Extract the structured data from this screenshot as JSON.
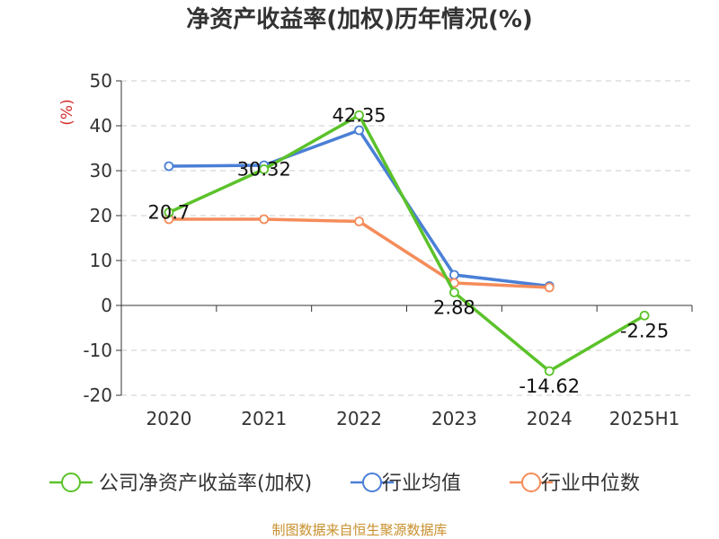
{
  "chart_data": {
    "type": "line",
    "title": "净资产收益率(加权)历年情况(%)",
    "ylabel": "(%)",
    "categories": [
      "2020",
      "2021",
      "2022",
      "2023",
      "2024",
      "2025H1"
    ],
    "ylim": [
      -20,
      50
    ],
    "yticks": [
      50,
      40,
      30,
      20,
      10,
      0,
      -10,
      -20
    ],
    "grid": true,
    "legend_position": "bottom",
    "series": [
      {
        "name": "公司净资产收益率(加权)",
        "color": "#5bc22a",
        "values": [
          20.7,
          30.32,
          42.35,
          2.88,
          -14.62,
          -2.25
        ],
        "labels": [
          "20.7",
          "30.32",
          "42.35",
          "2.88",
          "-14.62",
          "-2.25"
        ]
      },
      {
        "name": "行业均值",
        "color": "#4a7fd6",
        "values": [
          31.0,
          31.2,
          39.0,
          6.8,
          4.3,
          null
        ]
      },
      {
        "name": "行业中位数",
        "color": "#f58c5a",
        "values": [
          19.2,
          19.2,
          18.7,
          5.0,
          4.0,
          null
        ]
      }
    ]
  },
  "source": "制图数据来自恒生聚源数据库"
}
